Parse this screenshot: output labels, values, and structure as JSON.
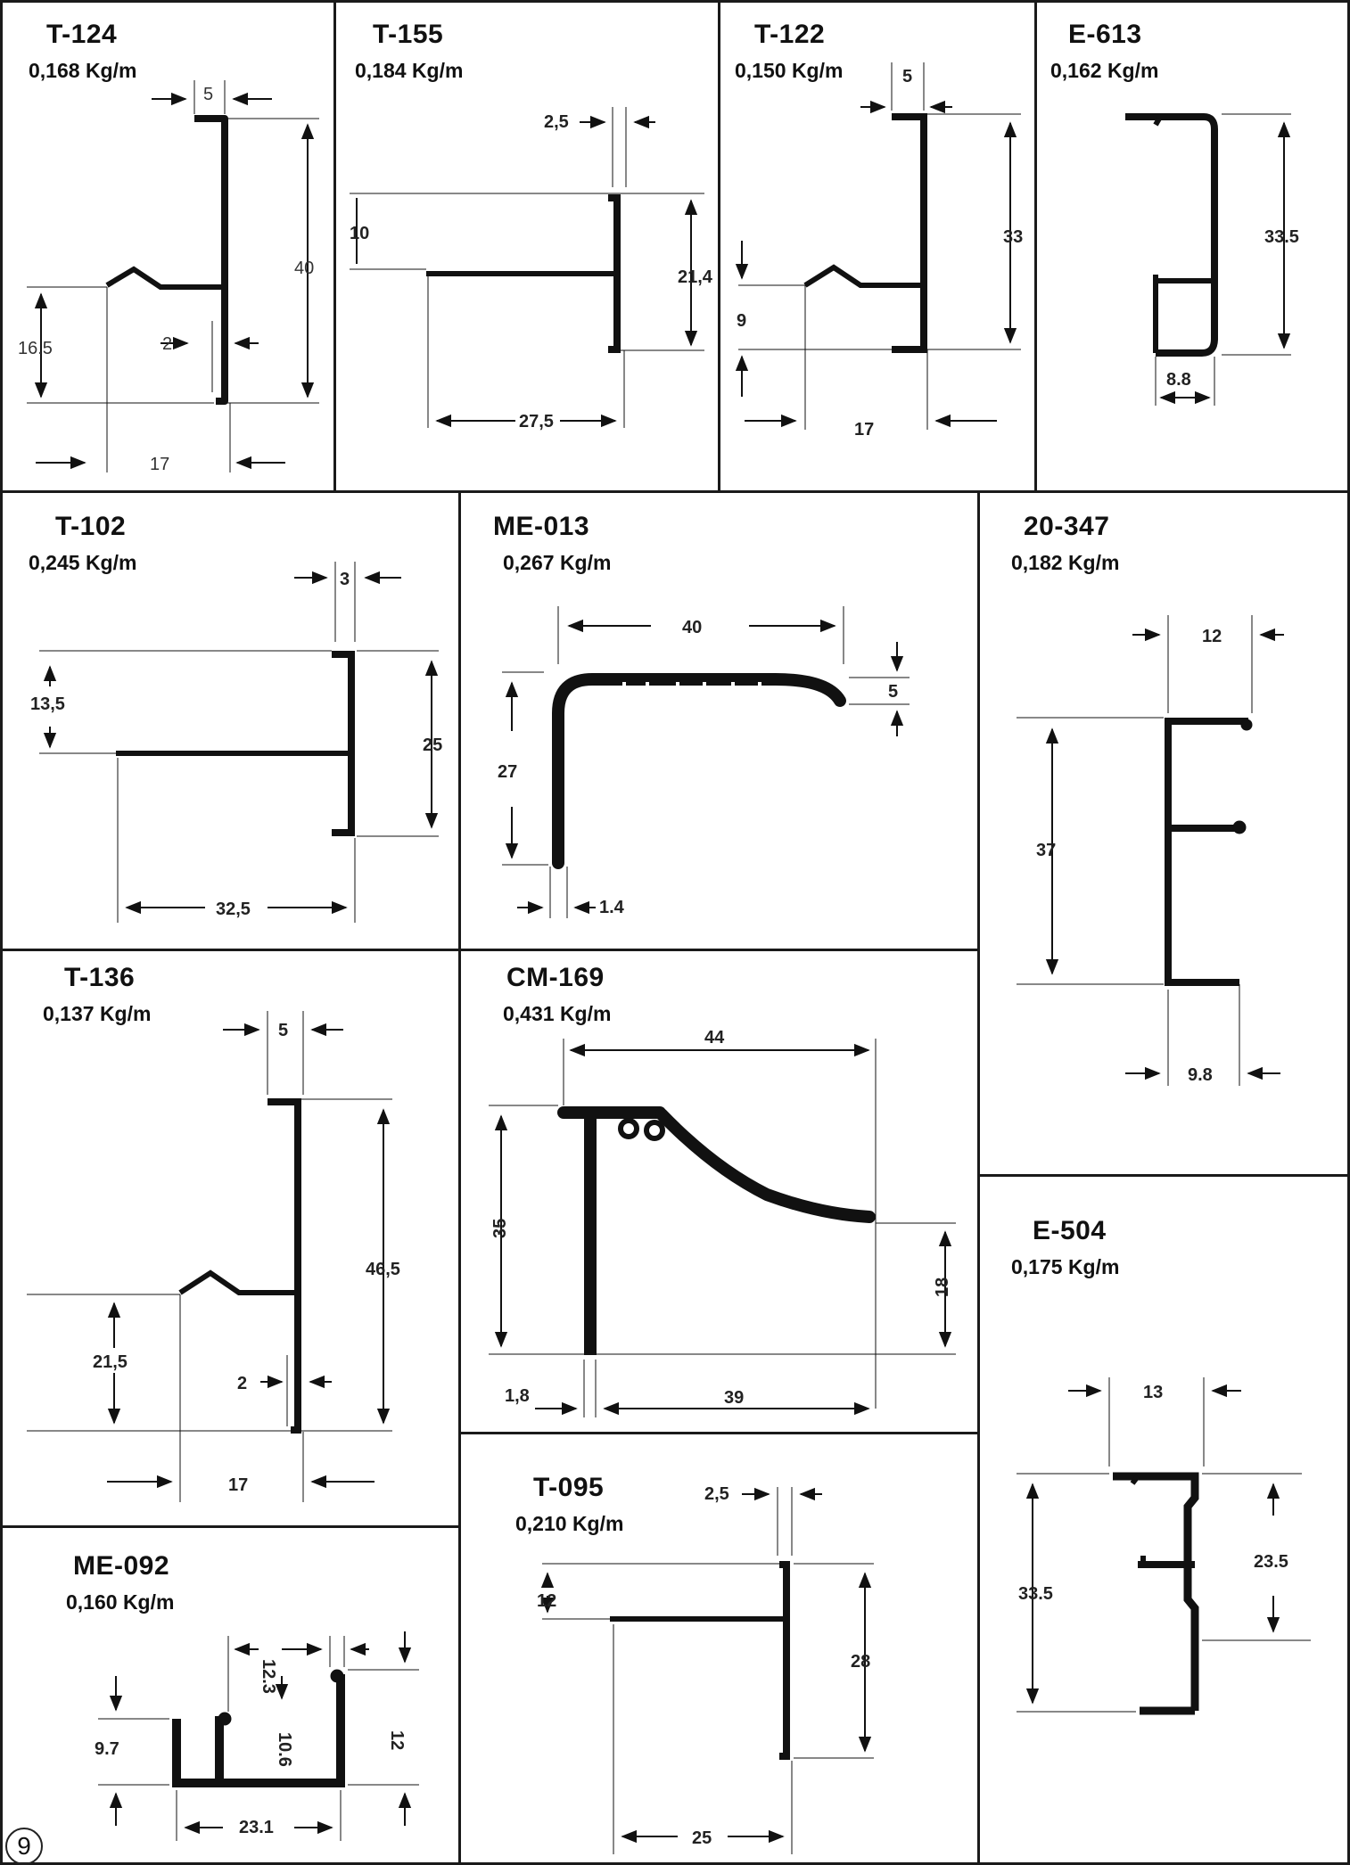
{
  "page_number": "9",
  "profiles": [
    {
      "code": "T-124",
      "weight": "0,168 Kg/m",
      "dims": [
        "5",
        "40",
        "16.5",
        "2",
        "17"
      ]
    },
    {
      "code": "T-155",
      "weight": "0,184 Kg/m",
      "dims": [
        "2,5",
        "10",
        "21,4",
        "27,5"
      ]
    },
    {
      "code": "T-122",
      "weight": "0,150 Kg/m",
      "dims": [
        "5",
        "33",
        "9",
        "17"
      ]
    },
    {
      "code": "E-613",
      "weight": "0,162 Kg/m",
      "dims": [
        "33.5",
        "8.8"
      ]
    },
    {
      "code": "T-102",
      "weight": "0,245 Kg/m",
      "dims": [
        "3",
        "13,5",
        "25",
        "32,5"
      ]
    },
    {
      "code": "ME-013",
      "weight": "0,267 Kg/m",
      "dims": [
        "40",
        "5",
        "27",
        "1.4"
      ]
    },
    {
      "code": "20-347",
      "weight": "0,182 Kg/m",
      "dims": [
        "12",
        "37",
        "9.8"
      ]
    },
    {
      "code": "T-136",
      "weight": "0,137 Kg/m",
      "dims": [
        "5",
        "46,5",
        "21,5",
        "2",
        "17"
      ]
    },
    {
      "code": "CM-169",
      "weight": "0,431 Kg/m",
      "dims": [
        "44",
        "35",
        "18",
        "1,8",
        "39"
      ]
    },
    {
      "code": "E-504",
      "weight": "0,175 Kg/m",
      "dims": [
        "13",
        "23.5",
        "33.5"
      ]
    },
    {
      "code": "ME-092",
      "weight": "0,160 Kg/m",
      "dims": [
        "12.3",
        "10.6",
        "9.7",
        "12",
        "23.1"
      ]
    },
    {
      "code": "T-095",
      "weight": "0,210 Kg/m",
      "dims": [
        "2,5",
        "12",
        "28",
        "25"
      ]
    }
  ]
}
